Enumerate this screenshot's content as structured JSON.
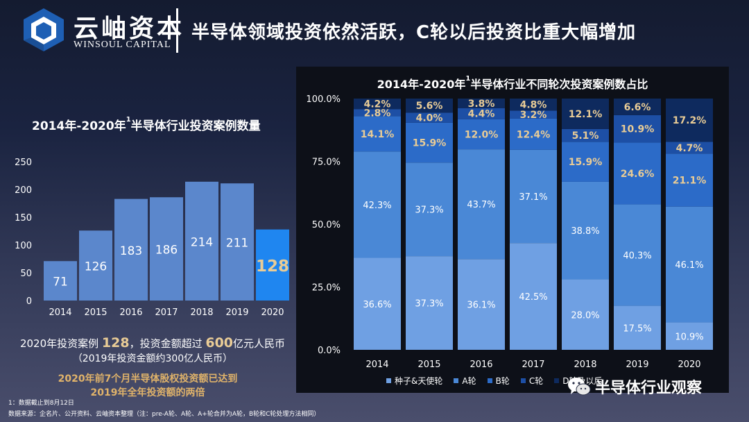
{
  "header": {
    "logo_cn": "云岫资本",
    "logo_en": "WINSOUL CAPITAL",
    "title": "半导体领域投资依然活跃，C轮以后投资比重大幅增加"
  },
  "left": {
    "title_prefix": "2014年-2020年",
    "title_sup": "1",
    "title_suffix": "半导体行业投资案例数量",
    "summary_a": "2020年投资案例 ",
    "summary_b": "128",
    "summary_c": "，投资金额超过 ",
    "summary_d": "600",
    "summary_e": "亿元人民币",
    "summary_2": "（2019年投资金额约300亿人民币）",
    "highlight_1": "2020年前7个月半导体股权投资额已达到",
    "highlight_2": "2019年全年投资额的两倍"
  },
  "footnotes": {
    "line1": "1：数据截止到8月12日",
    "line2": "数据来源：企名片、公开资料、云岫资本整理（注：pre-A轮、A轮、A+轮合并为A轮，B轮和C轮处理方法相同）"
  },
  "right": {
    "title_prefix": "2014年-2020年",
    "title_sup": "1",
    "title_suffix": "半导体行业不同轮次投资案例数占比"
  },
  "wechat": {
    "label": "半导体行业观察",
    "icon": "wechat-icon"
  },
  "colors": {
    "left_bar": "#5b87cc",
    "left_bar_highlight": "#1f86f0",
    "highlight_text": "#e9cc96",
    "seed": "#6fa0e3",
    "a_round": "#4a88d6",
    "b_round": "#2c6bc8",
    "c_round": "#1d4fa5",
    "d_round": "#0e2a5e"
  },
  "chart_data": [
    {
      "type": "bar",
      "title": "2014年-2020年1半导体行业投资案例数量",
      "categories": [
        "2014",
        "2015",
        "2016",
        "2017",
        "2018",
        "2019",
        "2020"
      ],
      "values": [
        71,
        126,
        183,
        186,
        214,
        211,
        128
      ],
      "y_ticks": [
        "250",
        "200",
        "150",
        "100",
        "50",
        "0"
      ],
      "ylim": [
        0,
        250
      ],
      "grid": false
    },
    {
      "type": "bar",
      "stacked": true,
      "title": "2014年-2020年1半导体行业不同轮次投资案例数占比",
      "categories": [
        "2014",
        "2015",
        "2016",
        "2017",
        "2018",
        "2019",
        "2020"
      ],
      "y_ticks": [
        "100.0%",
        "75.0%",
        "50.0%",
        "25.0%",
        "0.0%"
      ],
      "ylim": [
        0,
        100
      ],
      "series": [
        {
          "name": "种子&天使轮",
          "values": [
            36.6,
            37.3,
            36.1,
            42.5,
            28.0,
            17.5,
            10.9
          ],
          "labels": [
            "36.6%",
            "37.3%",
            "36.1%",
            "42.5%",
            "28.0%",
            "17.5%",
            "10.9%"
          ]
        },
        {
          "name": "A轮",
          "values": [
            42.3,
            37.3,
            43.7,
            37.1,
            38.8,
            40.3,
            46.1
          ],
          "labels": [
            "42.3%",
            "37.3%",
            "43.7%",
            "37.1%",
            "38.8%",
            "40.3%",
            "46.1%"
          ]
        },
        {
          "name": "B轮",
          "values": [
            14.1,
            15.9,
            12.0,
            12.4,
            15.9,
            24.6,
            21.1
          ],
          "labels": [
            "14.1%",
            "15.9%",
            "12.0%",
            "12.4%",
            "15.9%",
            "24.6%",
            "21.1%"
          ]
        },
        {
          "name": "C轮",
          "values": [
            2.8,
            4.0,
            4.4,
            3.2,
            5.1,
            10.9,
            4.7
          ],
          "labels": [
            "2.8%",
            "4.0%",
            "4.4%",
            "3.2%",
            "5.1%",
            "10.9%",
            "4.7%"
          ]
        },
        {
          "name": "D轮及以后",
          "values": [
            4.2,
            5.6,
            3.8,
            4.8,
            12.1,
            6.6,
            17.2
          ],
          "labels": [
            "4.2%",
            "5.6%",
            "3.8%",
            "4.8%",
            "12.1%",
            "6.6%",
            "17.2%"
          ]
        }
      ],
      "legend": "bottom"
    }
  ]
}
